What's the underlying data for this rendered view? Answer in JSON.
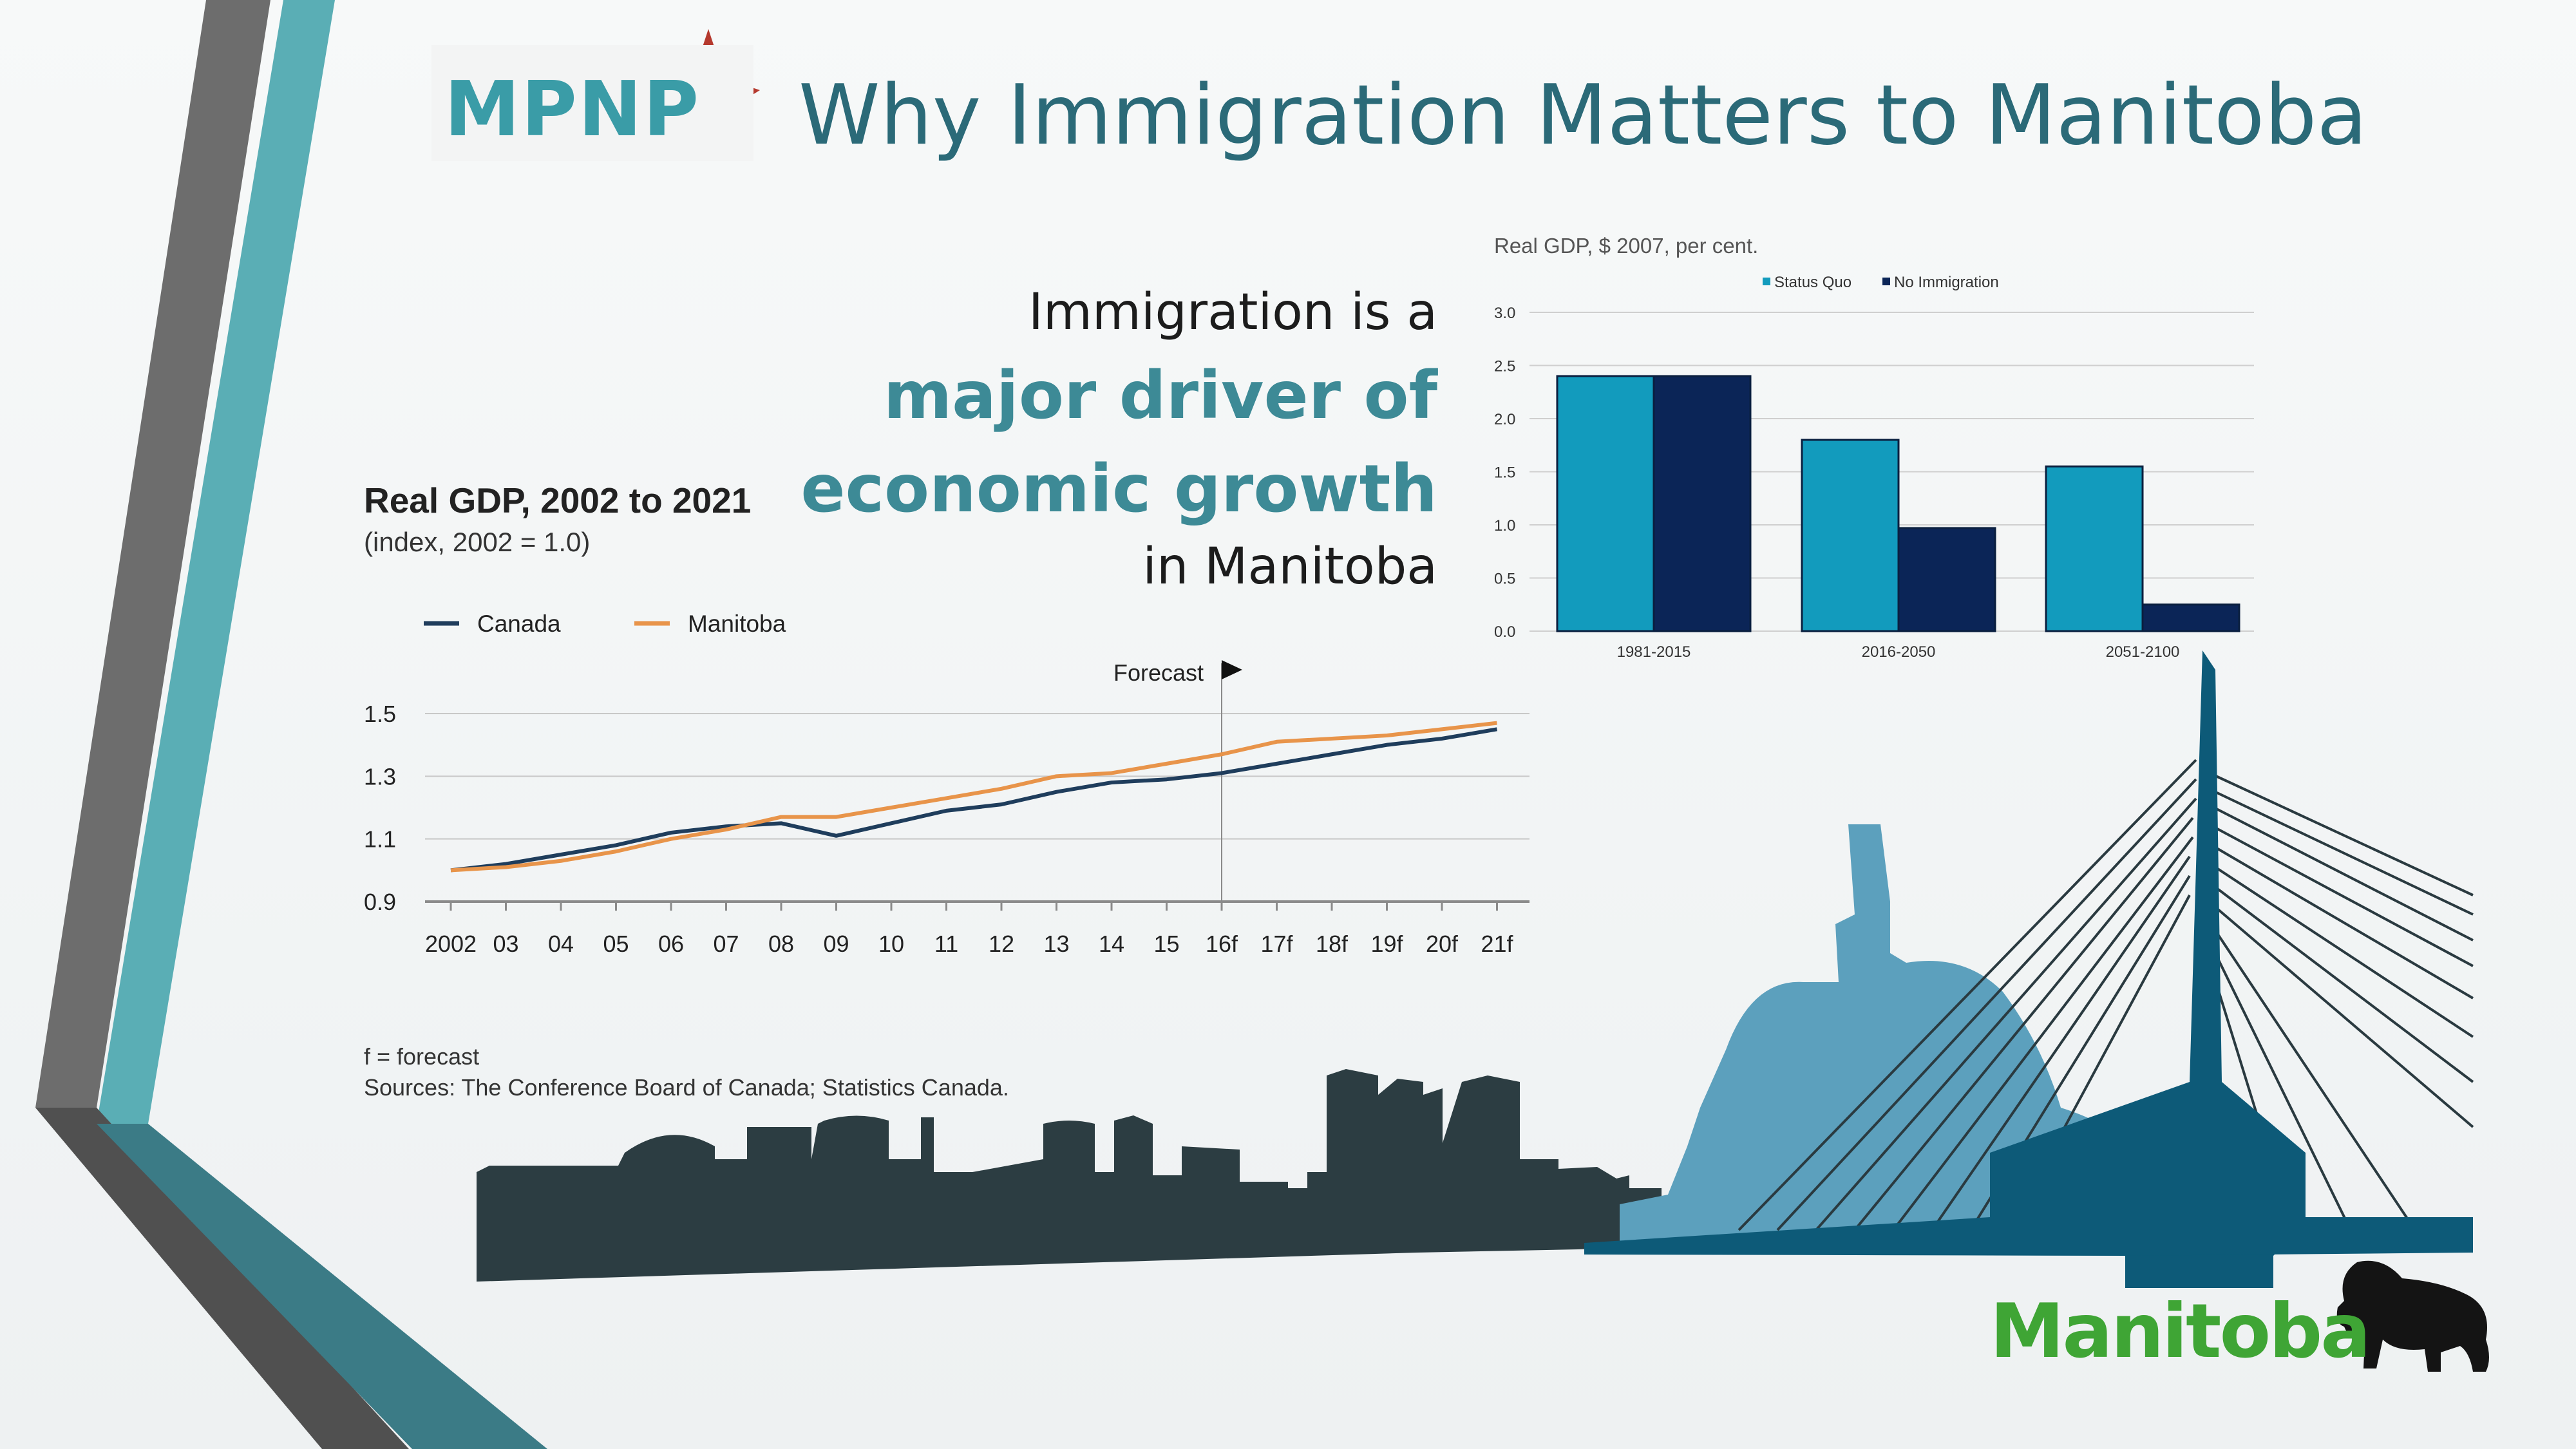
{
  "header": {
    "logo_text": "MPNP",
    "title": "Why Immigration Matters to Manitoba"
  },
  "slogan": {
    "line1": "Immigration is a",
    "line2": "major driver of",
    "line3": "economic growth",
    "line4": "in Manitoba"
  },
  "footer": {
    "note": "f = forecast",
    "sources": "Sources: The Conference Board of Canada; Statistics Canada."
  },
  "brand": {
    "wordmark": "Manitoba",
    "wordmark_color": "#3fa535",
    "accent": "#3d8a96"
  },
  "colors": {
    "canada": "#1f3d5c",
    "manitoba": "#e8944a",
    "status_quo": "#129bbd",
    "no_immigration": "#0b2557"
  },
  "chart_data": [
    {
      "type": "line",
      "title": "Real GDP, 2002 to 2021",
      "subtitle": "(index, 2002 = 1.0)",
      "annotation": "Forecast",
      "forecast_start": "16f",
      "x": [
        "2002",
        "03",
        "04",
        "05",
        "06",
        "07",
        "08",
        "09",
        "10",
        "11",
        "12",
        "13",
        "14",
        "15",
        "16f",
        "17f",
        "18f",
        "19f",
        "20f",
        "21f"
      ],
      "ylim": [
        0.9,
        1.5
      ],
      "yticks": [
        "1.5",
        "1.3",
        "1.1",
        "0.9"
      ],
      "legend_position": "top-left",
      "series": [
        {
          "name": "Canada",
          "values": [
            1.0,
            1.02,
            1.05,
            1.08,
            1.12,
            1.14,
            1.15,
            1.11,
            1.15,
            1.19,
            1.21,
            1.25,
            1.28,
            1.29,
            1.31,
            1.34,
            1.37,
            1.4,
            1.42,
            1.45
          ]
        },
        {
          "name": "Manitoba",
          "values": [
            1.0,
            1.01,
            1.03,
            1.06,
            1.1,
            1.13,
            1.17,
            1.17,
            1.2,
            1.23,
            1.26,
            1.3,
            1.31,
            1.34,
            1.37,
            1.41,
            1.42,
            1.43,
            1.45,
            1.47
          ]
        }
      ]
    },
    {
      "type": "bar",
      "title": "Real GDP, $ 2007, per cent.",
      "categories": [
        "1981-2015",
        "2016-2050",
        "2051-2100"
      ],
      "ylim": [
        0,
        3.0
      ],
      "yticks": [
        "0.0",
        "0.5",
        "1.0",
        "1.5",
        "2.0",
        "2.5",
        "3.0"
      ],
      "legend_position": "top-center",
      "series": [
        {
          "name": "Status Quo",
          "values": [
            2.4,
            1.8,
            1.55
          ]
        },
        {
          "name": "No Immigration",
          "values": [
            2.4,
            0.97,
            0.25
          ]
        }
      ]
    }
  ]
}
